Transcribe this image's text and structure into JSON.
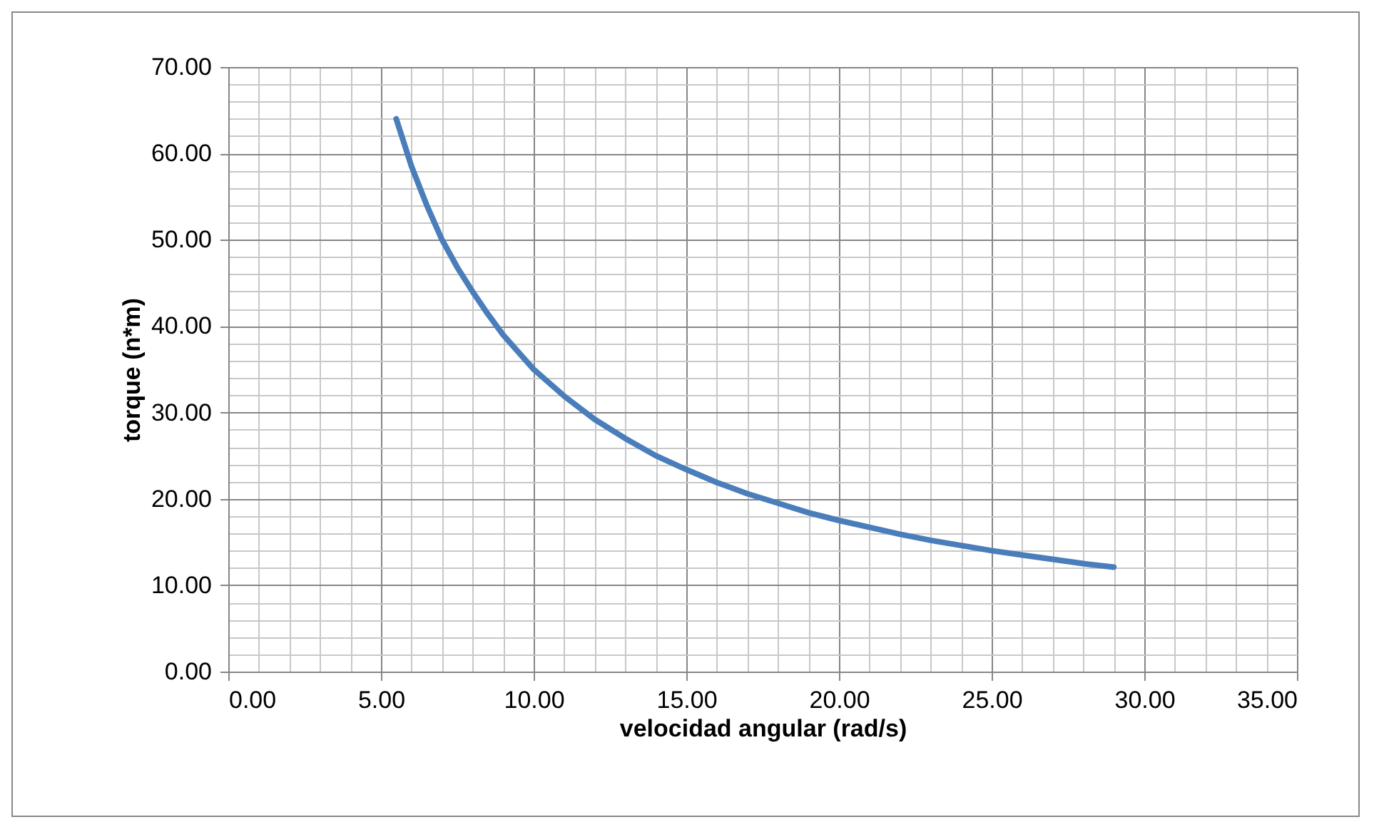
{
  "chart_data": {
    "type": "line",
    "xlabel": "velocidad angular (rad/s)",
    "ylabel": "torque (n*m)",
    "x": [
      5.5,
      6,
      6.5,
      7,
      7.5,
      8,
      8.5,
      9,
      10,
      11,
      12,
      13,
      14,
      15,
      16,
      17,
      18,
      19,
      20,
      21,
      22,
      23,
      24,
      25,
      26,
      27,
      28,
      29
    ],
    "series": [
      {
        "color": "#4a7ebb",
        "values": [
          64,
          58.5,
          54,
          50,
          46.8,
          44,
          41.4,
          39,
          35,
          31.9,
          29.2,
          27,
          25,
          23.4,
          21.9,
          20.6,
          19.5,
          18.4,
          17.5,
          16.7,
          15.9,
          15.2,
          14.6,
          14,
          13.5,
          13,
          12.5,
          12.1
        ]
      }
    ],
    "xlim": [
      0,
      35
    ],
    "ylim": [
      0,
      70
    ],
    "xticks": [
      {
        "value": 0,
        "label": "0.00"
      },
      {
        "value": 1,
        "label": null
      },
      {
        "value": 2,
        "label": null
      },
      {
        "value": 3,
        "label": null
      },
      {
        "value": 4,
        "label": null
      },
      {
        "value": 5,
        "label": "5.00"
      },
      {
        "value": 6,
        "label": null
      },
      {
        "value": 7,
        "label": null
      },
      {
        "value": 8,
        "label": null
      },
      {
        "value": 9,
        "label": null
      },
      {
        "value": 10,
        "label": "10.00"
      },
      {
        "value": 11,
        "label": null
      },
      {
        "value": 12,
        "label": null
      },
      {
        "value": 13,
        "label": null
      },
      {
        "value": 14,
        "label": null
      },
      {
        "value": 15,
        "label": "15.00"
      },
      {
        "value": 16,
        "label": null
      },
      {
        "value": 17,
        "label": null
      },
      {
        "value": 18,
        "label": null
      },
      {
        "value": 19,
        "label": null
      },
      {
        "value": 20,
        "label": "20.00"
      },
      {
        "value": 21,
        "label": null
      },
      {
        "value": 22,
        "label": null
      },
      {
        "value": 23,
        "label": null
      },
      {
        "value": 24,
        "label": null
      },
      {
        "value": 25,
        "label": "25.00"
      },
      {
        "value": 26,
        "label": null
      },
      {
        "value": 27,
        "label": null
      },
      {
        "value": 28,
        "label": null
      },
      {
        "value": 29,
        "label": null
      },
      {
        "value": 30,
        "label": "30.00"
      },
      {
        "value": 31,
        "label": null
      },
      {
        "value": 32,
        "label": null
      },
      {
        "value": 33,
        "label": null
      },
      {
        "value": 34,
        "label": null
      },
      {
        "value": 35,
        "label": "35.00"
      }
    ],
    "yticks": [
      {
        "value": 0,
        "label": "0.00"
      },
      {
        "value": 2,
        "label": null
      },
      {
        "value": 4,
        "label": null
      },
      {
        "value": 6,
        "label": null
      },
      {
        "value": 8,
        "label": null
      },
      {
        "value": 10,
        "label": "10.00"
      },
      {
        "value": 12,
        "label": null
      },
      {
        "value": 14,
        "label": null
      },
      {
        "value": 16,
        "label": null
      },
      {
        "value": 18,
        "label": null
      },
      {
        "value": 20,
        "label": "20.00"
      },
      {
        "value": 22,
        "label": null
      },
      {
        "value": 24,
        "label": null
      },
      {
        "value": 26,
        "label": null
      },
      {
        "value": 28,
        "label": null
      },
      {
        "value": 30,
        "label": "30.00"
      },
      {
        "value": 32,
        "label": null
      },
      {
        "value": 34,
        "label": null
      },
      {
        "value": 36,
        "label": null
      },
      {
        "value": 38,
        "label": null
      },
      {
        "value": 40,
        "label": "40.00"
      },
      {
        "value": 42,
        "label": null
      },
      {
        "value": 44,
        "label": null
      },
      {
        "value": 46,
        "label": null
      },
      {
        "value": 48,
        "label": null
      },
      {
        "value": 50,
        "label": "50.00"
      },
      {
        "value": 52,
        "label": null
      },
      {
        "value": 54,
        "label": null
      },
      {
        "value": 56,
        "label": null
      },
      {
        "value": 58,
        "label": null
      },
      {
        "value": 60,
        "label": "60.00"
      },
      {
        "value": 62,
        "label": null
      },
      {
        "value": 64,
        "label": null
      },
      {
        "value": 66,
        "label": null
      },
      {
        "value": 68,
        "label": null
      },
      {
        "value": 70,
        "label": "70.00"
      }
    ],
    "grid": true,
    "marker": "none",
    "line_style": "solid"
  }
}
